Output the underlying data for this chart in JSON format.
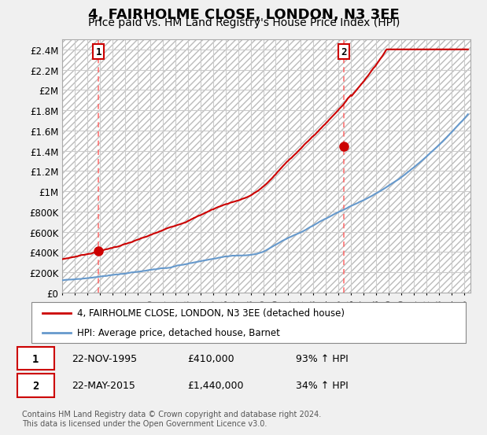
{
  "title": "4, FAIRHOLME CLOSE, LONDON, N3 3EE",
  "subtitle": "Price paid vs. HM Land Registry's House Price Index (HPI)",
  "title_fontsize": 13,
  "subtitle_fontsize": 10,
  "ylim": [
    0,
    2500000
  ],
  "yticks": [
    0,
    200000,
    400000,
    600000,
    800000,
    1000000,
    1200000,
    1400000,
    1600000,
    1800000,
    2000000,
    2200000,
    2400000
  ],
  "ytick_labels": [
    "£0",
    "£200K",
    "£400K",
    "£600K",
    "£800K",
    "£1M",
    "£1.2M",
    "£1.4M",
    "£1.6M",
    "£1.8M",
    "£2M",
    "£2.2M",
    "£2.4M"
  ],
  "xlim_start": 1993.0,
  "xlim_end": 2025.5,
  "xtick_years": [
    1993,
    1994,
    1995,
    1996,
    1997,
    1998,
    1999,
    2000,
    2001,
    2002,
    2003,
    2004,
    2005,
    2006,
    2007,
    2008,
    2009,
    2010,
    2011,
    2012,
    2013,
    2014,
    2015,
    2016,
    2017,
    2018,
    2019,
    2020,
    2021,
    2022,
    2023,
    2024,
    2025
  ],
  "red_line_color": "#cc0000",
  "blue_line_color": "#6699cc",
  "point1_x": 1995.9,
  "point1_y": 410000,
  "point2_x": 2015.4,
  "point2_y": 1440000,
  "vline1_x": 1995.9,
  "vline2_x": 2015.4,
  "legend_line1": "4, FAIRHOLME CLOSE, LONDON, N3 3EE (detached house)",
  "legend_line2": "HPI: Average price, detached house, Barnet",
  "sale1_date": "22-NOV-1995",
  "sale1_price": "£410,000",
  "sale1_hpi": "93% ↑ HPI",
  "sale2_date": "22-MAY-2015",
  "sale2_price": "£1,440,000",
  "sale2_hpi": "34% ↑ HPI",
  "footer": "Contains HM Land Registry data © Crown copyright and database right 2024.\nThis data is licensed under the Open Government Licence v3.0.",
  "background_color": "#f0f0f0",
  "plot_bg_color": "#ffffff",
  "grid_color": "#cccccc"
}
